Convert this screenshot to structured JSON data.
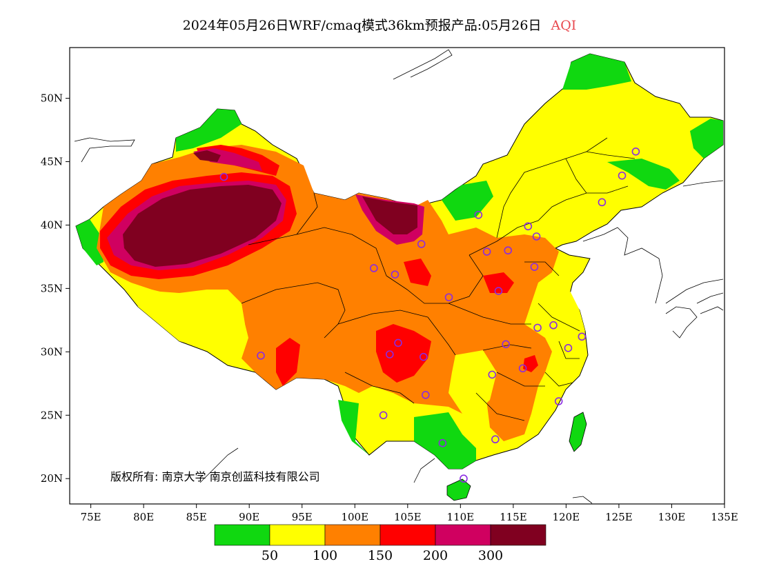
{
  "title": {
    "main": "2024年05月26日WRF/cmaq模式36km预报产品:05月26日",
    "variable": "AQI"
  },
  "map": {
    "lon_range": [
      73,
      135
    ],
    "lat_range": [
      18,
      54
    ],
    "x_ticks": [
      "75E",
      "80E",
      "85E",
      "90E",
      "95E",
      "100E",
      "105E",
      "110E",
      "115E",
      "120E",
      "125E",
      "130E",
      "135E"
    ],
    "x_tick_values": [
      75,
      80,
      85,
      90,
      95,
      100,
      105,
      110,
      115,
      120,
      125,
      130,
      135
    ],
    "y_ticks": [
      "20N",
      "25N",
      "30N",
      "35N",
      "40N",
      "45N",
      "50N"
    ],
    "y_tick_values": [
      20,
      25,
      30,
      35,
      40,
      45,
      50
    ],
    "copyright": "版权所有: 南京大学  南京创蓝科技有限公司",
    "station_color": "#8a2be2",
    "stations": [
      [
        126.6,
        45.8
      ],
      [
        125.3,
        43.9
      ],
      [
        123.4,
        41.8
      ],
      [
        116.4,
        39.9
      ],
      [
        117.2,
        39.1
      ],
      [
        114.5,
        38.0
      ],
      [
        112.5,
        37.9
      ],
      [
        111.7,
        40.8
      ],
      [
        106.3,
        38.5
      ],
      [
        103.8,
        36.1
      ],
      [
        101.8,
        36.6
      ],
      [
        108.9,
        34.3
      ],
      [
        113.6,
        34.8
      ],
      [
        117.0,
        36.7
      ],
      [
        117.3,
        31.9
      ],
      [
        118.8,
        32.1
      ],
      [
        121.5,
        31.2
      ],
      [
        120.2,
        30.3
      ],
      [
        114.3,
        30.6
      ],
      [
        113.0,
        28.2
      ],
      [
        115.9,
        28.7
      ],
      [
        119.3,
        26.1
      ],
      [
        113.3,
        23.1
      ],
      [
        108.3,
        22.8
      ],
      [
        110.3,
        20.0
      ],
      [
        106.7,
        26.6
      ],
      [
        102.7,
        25.0
      ],
      [
        104.1,
        30.7
      ],
      [
        106.5,
        29.6
      ],
      [
        91.1,
        29.7
      ],
      [
        87.6,
        43.8
      ],
      [
        103.3,
        29.8
      ]
    ]
  },
  "legend": {
    "colors": [
      "#10d810",
      "#ffff00",
      "#ff8000",
      "#ff0000",
      "#d00060",
      "#800020"
    ],
    "labels": [
      "50",
      "100",
      "150",
      "200",
      "300"
    ]
  }
}
